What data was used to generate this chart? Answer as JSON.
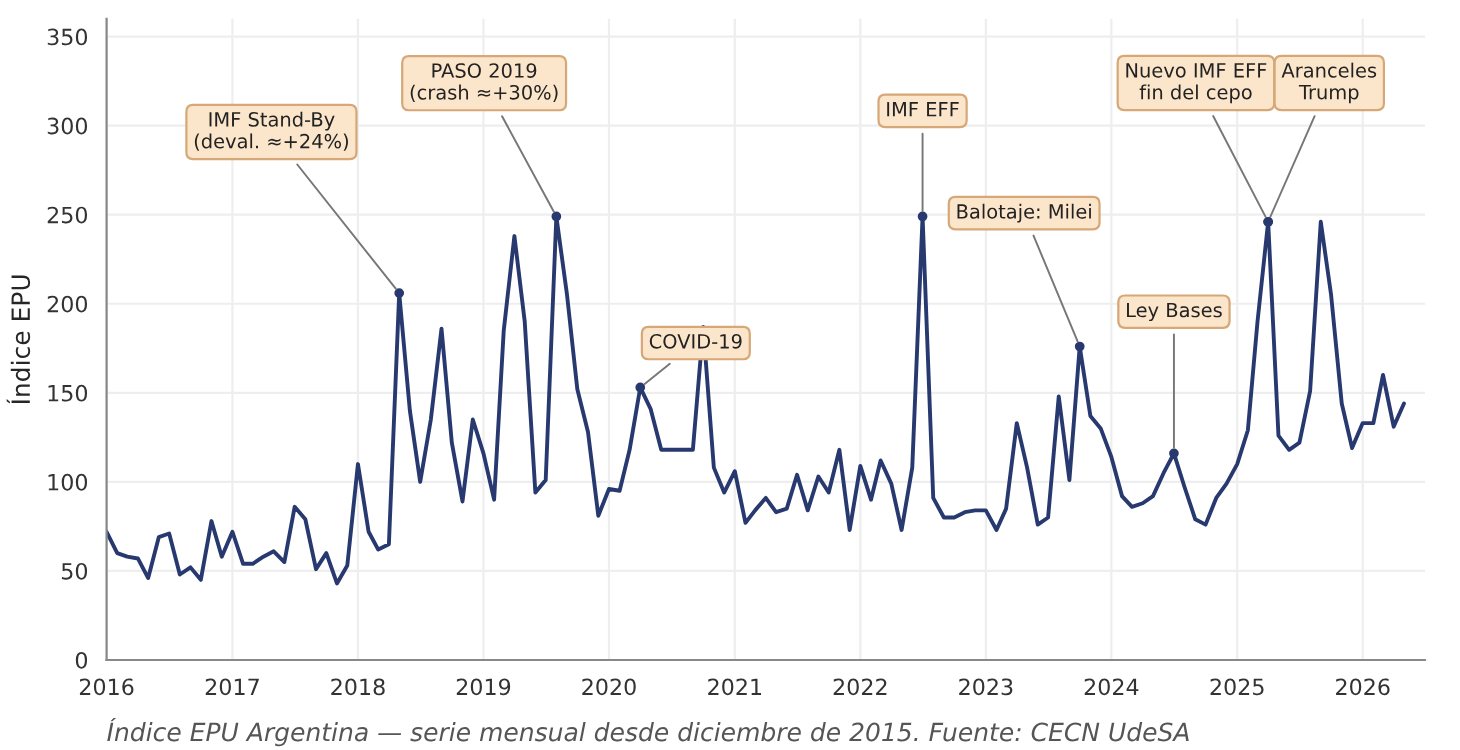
{
  "chart_data": {
    "type": "line",
    "ylabel": "Índice EPU",
    "series": [
      {
        "color": "#27396f",
        "x": [
          "2016-01",
          "2016-02",
          "2016-03",
          "2016-04",
          "2016-05",
          "2016-06",
          "2016-07",
          "2016-08",
          "2016-09",
          "2016-10",
          "2016-11",
          "2016-12",
          "2017-01",
          "2017-02",
          "2017-03",
          "2017-04",
          "2017-05",
          "2017-06",
          "2017-07",
          "2017-08",
          "2017-09",
          "2017-10",
          "2017-11",
          "2017-12",
          "2018-01",
          "2018-02",
          "2018-03",
          "2018-04",
          "2018-05",
          "2018-06",
          "2018-07",
          "2018-08",
          "2018-09",
          "2018-10",
          "2018-11",
          "2018-12",
          "2019-01",
          "2019-02",
          "2019-03",
          "2019-04",
          "2019-05",
          "2019-06",
          "2019-07",
          "2019-08",
          "2019-09",
          "2019-10",
          "2019-11",
          "2019-12",
          "2020-01",
          "2020-02",
          "2020-03",
          "2020-04",
          "2020-05",
          "2020-06",
          "2020-07",
          "2020-08",
          "2020-09",
          "2020-10",
          "2020-11",
          "2020-12",
          "2021-01",
          "2021-02",
          "2021-03",
          "2021-04",
          "2021-05",
          "2021-06",
          "2021-07",
          "2021-08",
          "2021-09",
          "2021-10",
          "2021-11",
          "2021-12",
          "2022-01",
          "2022-02",
          "2022-03",
          "2022-04",
          "2022-05",
          "2022-06",
          "2022-07",
          "2022-08",
          "2022-09",
          "2022-10",
          "2022-11",
          "2022-12",
          "2023-01",
          "2023-02",
          "2023-03",
          "2023-04",
          "2023-05",
          "2023-06",
          "2023-07",
          "2023-08",
          "2023-09",
          "2023-10",
          "2023-11",
          "2023-12",
          "2024-01",
          "2024-02",
          "2024-03",
          "2024-04",
          "2024-05",
          "2024-06",
          "2024-07",
          "2024-08",
          "2024-09",
          "2024-10",
          "2024-11",
          "2024-12",
          "2025-01",
          "2025-02",
          "2025-03",
          "2025-04",
          "2025-05",
          "2025-06",
          "2025-07",
          "2025-08",
          "2025-09",
          "2025-10",
          "2025-11",
          "2025-12",
          "2026-01",
          "2026-02",
          "2026-03",
          "2026-04",
          "2026-05"
        ],
        "values": [
          72,
          60,
          58,
          57,
          46,
          69,
          71,
          48,
          52,
          45,
          78,
          58,
          72,
          54,
          54,
          58,
          61,
          55,
          86,
          79,
          51,
          60,
          43,
          53,
          110,
          72,
          62,
          65,
          206,
          140,
          100,
          135,
          186,
          122,
          89,
          135,
          116,
          90,
          185,
          238,
          190,
          94,
          101,
          249,
          205,
          152,
          128,
          81,
          96,
          95,
          118,
          153,
          141,
          118,
          118,
          118,
          118,
          187,
          108,
          94,
          106,
          77,
          84,
          91,
          83,
          85,
          104,
          84,
          103,
          94,
          118,
          73,
          109,
          90,
          112,
          99,
          73,
          108,
          249,
          91,
          80,
          80,
          83,
          84,
          84,
          73,
          85,
          133,
          108,
          76,
          80,
          148,
          101,
          176,
          137,
          130,
          114,
          92,
          86,
          88,
          92,
          105,
          116,
          97,
          79,
          76,
          91,
          99,
          110,
          129,
          190,
          246,
          126,
          118,
          122,
          151,
          246,
          205,
          144,
          119,
          133,
          133,
          160,
          131,
          144
        ]
      }
    ],
    "xlim": [
      "2016-01",
      "2026-07"
    ],
    "xticks": [
      {
        "value": "2016",
        "label": "2016"
      },
      {
        "value": "2017",
        "label": "2017"
      },
      {
        "value": "2018",
        "label": "2018"
      },
      {
        "value": "2019",
        "label": "2019"
      },
      {
        "value": "2020",
        "label": "2020"
      },
      {
        "value": "2021",
        "label": "2021"
      },
      {
        "value": "2022",
        "label": "2022"
      },
      {
        "value": "2023",
        "label": "2023"
      },
      {
        "value": "2024",
        "label": "2024"
      },
      {
        "value": "2025",
        "label": "2025"
      },
      {
        "value": "2026",
        "label": "2026"
      }
    ],
    "ylim": [
      0,
      360
    ],
    "yticks": [
      0,
      50,
      100,
      150,
      200,
      250,
      300,
      350
    ],
    "grid": true,
    "line_style": "solid",
    "annotations": [
      {
        "text": "IMF Stand-By\n(deval. ≈+24%)",
        "x": "2018-05",
        "y": 206
      },
      {
        "text": "PASO 2019\n(crash ≈+30%)",
        "x": "2019-08",
        "y": 249
      },
      {
        "text": "COVID-19",
        "x": "2020-04",
        "y": 153
      },
      {
        "text": "IMF EFF",
        "x": "2022-07",
        "y": 249
      },
      {
        "text": "Balotaje: Milei",
        "x": "2023-10",
        "y": 176
      },
      {
        "text": "Ley Bases",
        "x": "2024-07",
        "y": 116
      },
      {
        "text": "Nuevo IMF EFF\nfin del cepo",
        "x": "2025-04",
        "y": 246
      },
      {
        "text": "Aranceles\nTrump",
        "x": "2025-04",
        "y": 246
      },
      "Índice EPU Argentina — serie mensual desde diciembre de 2015. Fuente: CECN UdeSA"
    ]
  }
}
